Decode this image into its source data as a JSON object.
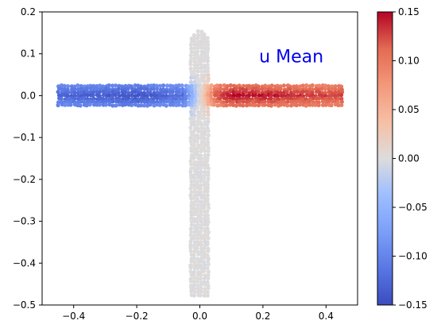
{
  "chart_data": {
    "type": "scatter",
    "title": "",
    "xlabel": "",
    "ylabel": "",
    "xlim": [
      -0.5,
      0.5
    ],
    "ylim": [
      -0.5,
      0.2
    ],
    "xticks": [
      -0.4,
      -0.2,
      0.0,
      0.2,
      0.4
    ],
    "xtick_labels": [
      "−0.4",
      "−0.2",
      "0.0",
      "0.2",
      "0.4"
    ],
    "yticks": [
      0.2,
      0.1,
      0.0,
      -0.1,
      -0.2,
      -0.3,
      -0.4,
      -0.5
    ],
    "ytick_labels": [
      "0.2",
      "0.1",
      "0.0",
      "−0.1",
      "−0.2",
      "−0.3",
      "−0.4",
      "−0.5"
    ],
    "grid": false,
    "annotation": {
      "text": "u Mean",
      "x": 0.29,
      "y": 0.08,
      "color": "#0000ee"
    },
    "colormap": "coolwarm",
    "colorbar": {
      "vmin": -0.15,
      "vmax": 0.15,
      "ticks": [
        0.15,
        0.1,
        0.05,
        0.0,
        -0.05,
        -0.1,
        -0.15
      ],
      "tick_labels": [
        "0.15",
        "0.10",
        "0.05",
        "0.00",
        "−0.05",
        "−0.10",
        "−0.15"
      ]
    },
    "regions": [
      {
        "shape": "horizontal-channel",
        "x_range": [
          -0.45,
          0.45
        ],
        "y_range": [
          -0.025,
          0.025
        ]
      },
      {
        "shape": "vertical-channel",
        "x_range": [
          -0.03,
          0.03
        ],
        "y_range": [
          -0.48,
          0.155
        ]
      }
    ],
    "field_samples": [
      {
        "x": -0.4,
        "y": 0.0,
        "u": -0.13
      },
      {
        "x": -0.2,
        "y": 0.0,
        "u": -0.145
      },
      {
        "x": -0.05,
        "y": 0.0,
        "u": -0.12
      },
      {
        "x": 0.0,
        "y": 0.0,
        "u": 0.0
      },
      {
        "x": 0.05,
        "y": 0.0,
        "u": 0.12
      },
      {
        "x": 0.1,
        "y": 0.0,
        "u": 0.15
      },
      {
        "x": 0.4,
        "y": 0.0,
        "u": 0.13
      },
      {
        "x": 0.0,
        "y": 0.12,
        "u": 0.0
      },
      {
        "x": 0.0,
        "y": -0.3,
        "u": 0.0
      }
    ]
  }
}
